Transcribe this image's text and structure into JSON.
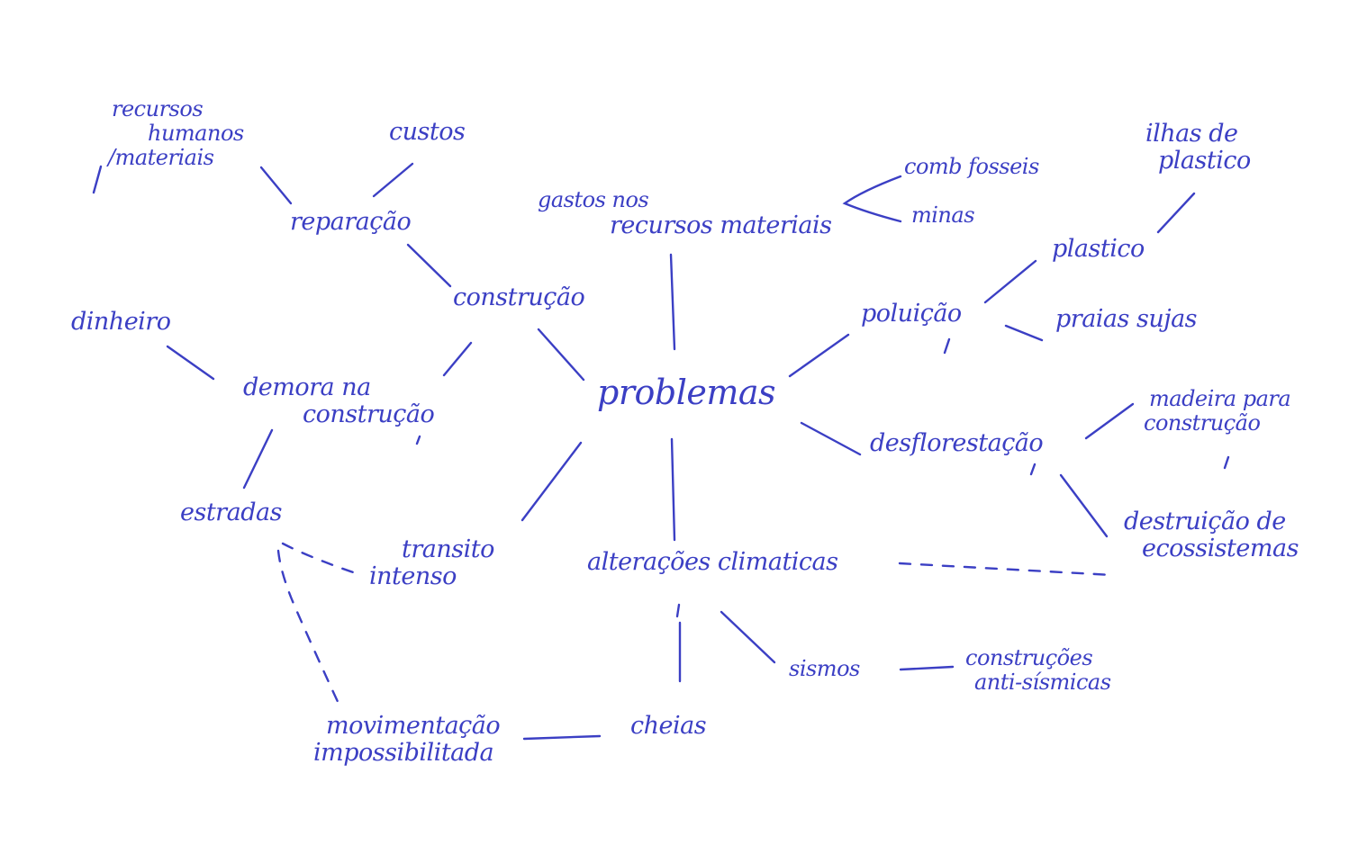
{
  "colors": {
    "ink": "#3b3fc4",
    "background": "#ffffff"
  },
  "nodes": {
    "problemas": "problemas",
    "construcao": "construção",
    "reparacao": "reparação",
    "custos": "custos",
    "recursos_line1": "recursos",
    "recursos_line2": "humanos",
    "recursos_line3": "/materiais",
    "dinheiro": "dinheiro",
    "demora_line1": "demora na",
    "demora_line2": "construção",
    "estradas": "estradas",
    "transito_line1": "transito",
    "transito_line2": "intenso",
    "movimentacao_line1": "movimentação",
    "movimentacao_line2": "impossibilitada",
    "gastos_line1": "gastos nos",
    "gastos_line2": "recursos materiais",
    "combustiveis": "comb fosseis",
    "minas": "minas",
    "poluicao": "poluição",
    "plastico": "plastico",
    "ilhas_line1": "ilhas de",
    "ilhas_line2": "plastico",
    "praias": "praias sujas",
    "desflorestacao": "desflorestação",
    "madeira_line1": "madeira para",
    "madeira_line2": "construção",
    "destruicao_line1": "destruição de",
    "destruicao_line2": "ecossistemas",
    "alteracoes": "alterações climaticas",
    "sismos": "sismos",
    "construcoes_line1": "construções",
    "construcoes_line2": "anti-sísmicas",
    "cheias": "cheias"
  }
}
